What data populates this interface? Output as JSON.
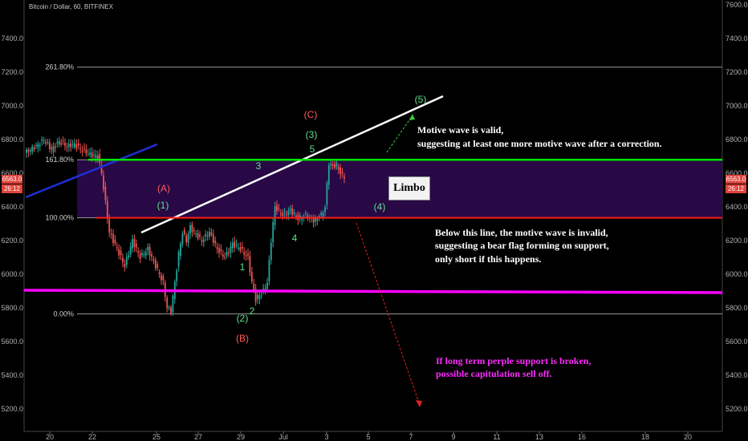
{
  "header": {
    "title": "Bitcoin / Dollar, 60, BITFINEX"
  },
  "price_tags": {
    "last_price": "6563.0",
    "countdown": "26:12"
  },
  "colors": {
    "green_line": "#00e600",
    "red_line": "#ff1a1a",
    "magenta_line": "#ff00ff",
    "limbo_fill": "#2a0a4a",
    "up_candle": "#26a69a",
    "down_candle": "#ef5350",
    "wave_red": "#ff5b5b",
    "wave_green": "#5fe08a",
    "trend_blue": "#1e2fd6"
  },
  "limbo_label": "Limbo",
  "annotations": {
    "motive_1": "Motive wave is valid,",
    "motive_2": "suggesting at least one more motive wave after a correction.",
    "below_1": "Below this line, the motive wave is invalid,",
    "below_2": "suggesting a bear flag forming on support,",
    "below_3": "only short if this happens.",
    "cap_1": "If long term perple support is broken,",
    "cap_2": "possible capitulation sell off."
  },
  "chart_data": {
    "type": "candlestick",
    "title": "Bitcoin / Dollar, 60, BITFINEX",
    "y_range": [
      5120,
      7620
    ],
    "y_ticks_left": [
      "7400.0",
      "7200.0",
      "7000.0",
      "6800.0",
      "6600.0",
      "6400.0",
      "6200.0",
      "6000.0",
      "5800.0",
      "5600.0",
      "5400.0",
      "5200.0"
    ],
    "y_ticks_right": [
      "7600.0",
      "7400.0",
      "7200.0",
      "7000.0",
      "6800.0",
      "6600.0",
      "6400.0",
      "6200.0",
      "6000.0",
      "5800.0",
      "5600.0",
      "5400.0",
      "5200.0"
    ],
    "x_ticks": [
      "20",
      "22",
      "25",
      "27",
      "29",
      "Jul",
      "3",
      "5",
      "7",
      "9",
      "11",
      "13",
      "16",
      "18",
      "20"
    ],
    "fib_levels": [
      {
        "label": "261.80%",
        "price": 7230
      },
      {
        "label": "161.80%",
        "price": 6680
      },
      {
        "label": "100.00%",
        "price": 6335
      },
      {
        "label": "0.00%",
        "price": 5765
      }
    ],
    "horizontal_levels": {
      "green": 6680,
      "red": 6335,
      "magenta": 5905
    },
    "wave_labels": [
      {
        "text": "(C)",
        "color": "red"
      },
      {
        "text": "(3)",
        "color": "green"
      },
      {
        "text": "5",
        "color": "green"
      },
      {
        "text": "(5)",
        "color": "green"
      },
      {
        "text": "3",
        "color": "green"
      },
      {
        "text": "(A)",
        "color": "red"
      },
      {
        "text": "(1)",
        "color": "green"
      },
      {
        "text": "(4)",
        "color": "green"
      },
      {
        "text": "4",
        "color": "green"
      },
      {
        "text": "1",
        "color": "green"
      },
      {
        "text": "2",
        "color": "green"
      },
      {
        "text": "(2)",
        "color": "green"
      },
      {
        "text": "(B)",
        "color": "red"
      }
    ],
    "price_path": [
      [
        0,
        6720
      ],
      [
        6,
        6760
      ],
      [
        10,
        6800
      ],
      [
        14,
        6740
      ],
      [
        18,
        6790
      ],
      [
        22,
        6760
      ],
      [
        26,
        6770
      ],
      [
        30,
        6740
      ],
      [
        34,
        6710
      ],
      [
        38,
        6700
      ],
      [
        40,
        6600
      ],
      [
        44,
        6250
      ],
      [
        48,
        6150
      ],
      [
        52,
        6050
      ],
      [
        56,
        6200
      ],
      [
        60,
        6100
      ],
      [
        64,
        6150
      ],
      [
        68,
        6050
      ],
      [
        72,
        5950
      ],
      [
        74,
        5800
      ],
      [
        76,
        5780
      ],
      [
        78,
        5950
      ],
      [
        80,
        6120
      ],
      [
        82,
        6250
      ],
      [
        84,
        6200
      ],
      [
        86,
        6280
      ],
      [
        88,
        6250
      ],
      [
        92,
        6200
      ],
      [
        96,
        6250
      ],
      [
        100,
        6150
      ],
      [
        104,
        6100
      ],
      [
        108,
        6180
      ],
      [
        112,
        6150
      ],
      [
        116,
        6100
      ],
      [
        118,
        5950
      ],
      [
        120,
        5850
      ],
      [
        122,
        5880
      ],
      [
        124,
        5900
      ],
      [
        126,
        5950
      ],
      [
        128,
        6200
      ],
      [
        130,
        6400
      ],
      [
        134,
        6350
      ],
      [
        138,
        6380
      ],
      [
        142,
        6330
      ],
      [
        146,
        6350
      ],
      [
        150,
        6320
      ],
      [
        154,
        6350
      ],
      [
        156,
        6400
      ],
      [
        158,
        6660
      ],
      [
        160,
        6640
      ],
      [
        162,
        6650
      ],
      [
        164,
        6600
      ],
      [
        166,
        6580
      ]
    ]
  }
}
